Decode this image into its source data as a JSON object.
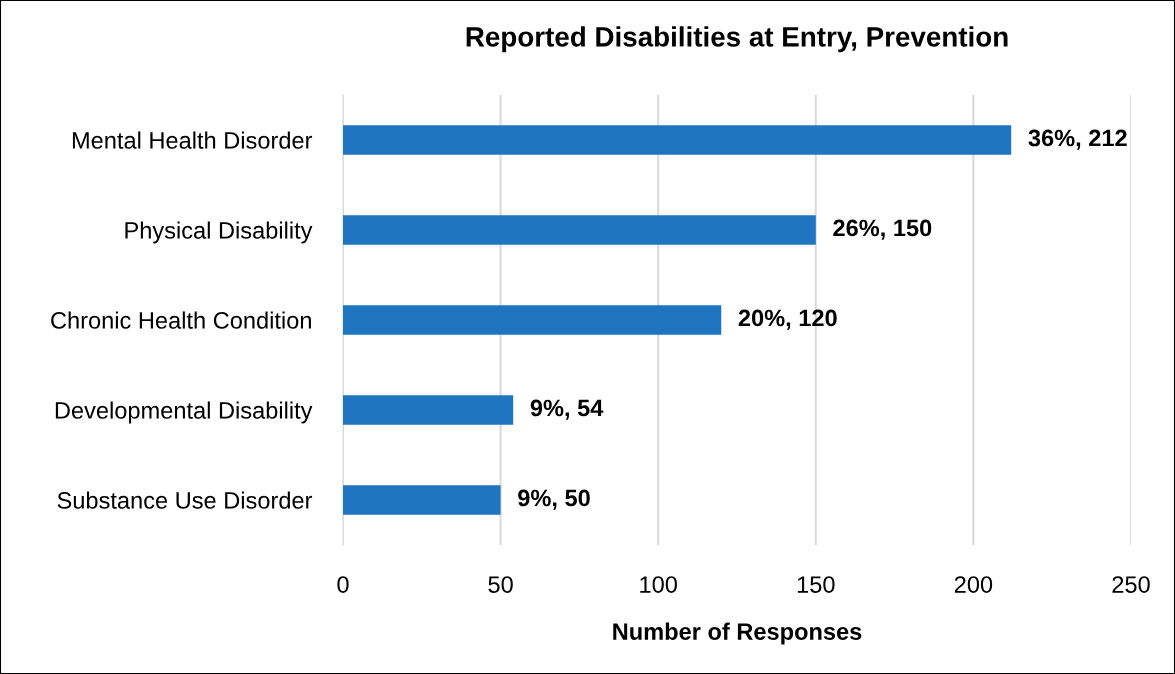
{
  "chart_data": {
    "type": "bar",
    "orientation": "horizontal",
    "title": "Reported Disabilities at Entry, Prevention",
    "xlabel": "Number of Responses",
    "categories": [
      "Mental Health Disorder",
      "Physical Disability",
      "Chronic Health Condition",
      "Developmental Disability",
      "Substance Use Disorder"
    ],
    "values": [
      212,
      150,
      120,
      54,
      50
    ],
    "value_labels": [
      "36%, 212",
      "26%, 150",
      "20%, 120",
      "9%, 54",
      "9%, 50"
    ],
    "color": "#1f75c0",
    "xlim": [
      0,
      250
    ],
    "xticks": [
      0,
      50,
      100,
      150,
      200,
      250
    ],
    "grid": "x",
    "legend": false
  }
}
